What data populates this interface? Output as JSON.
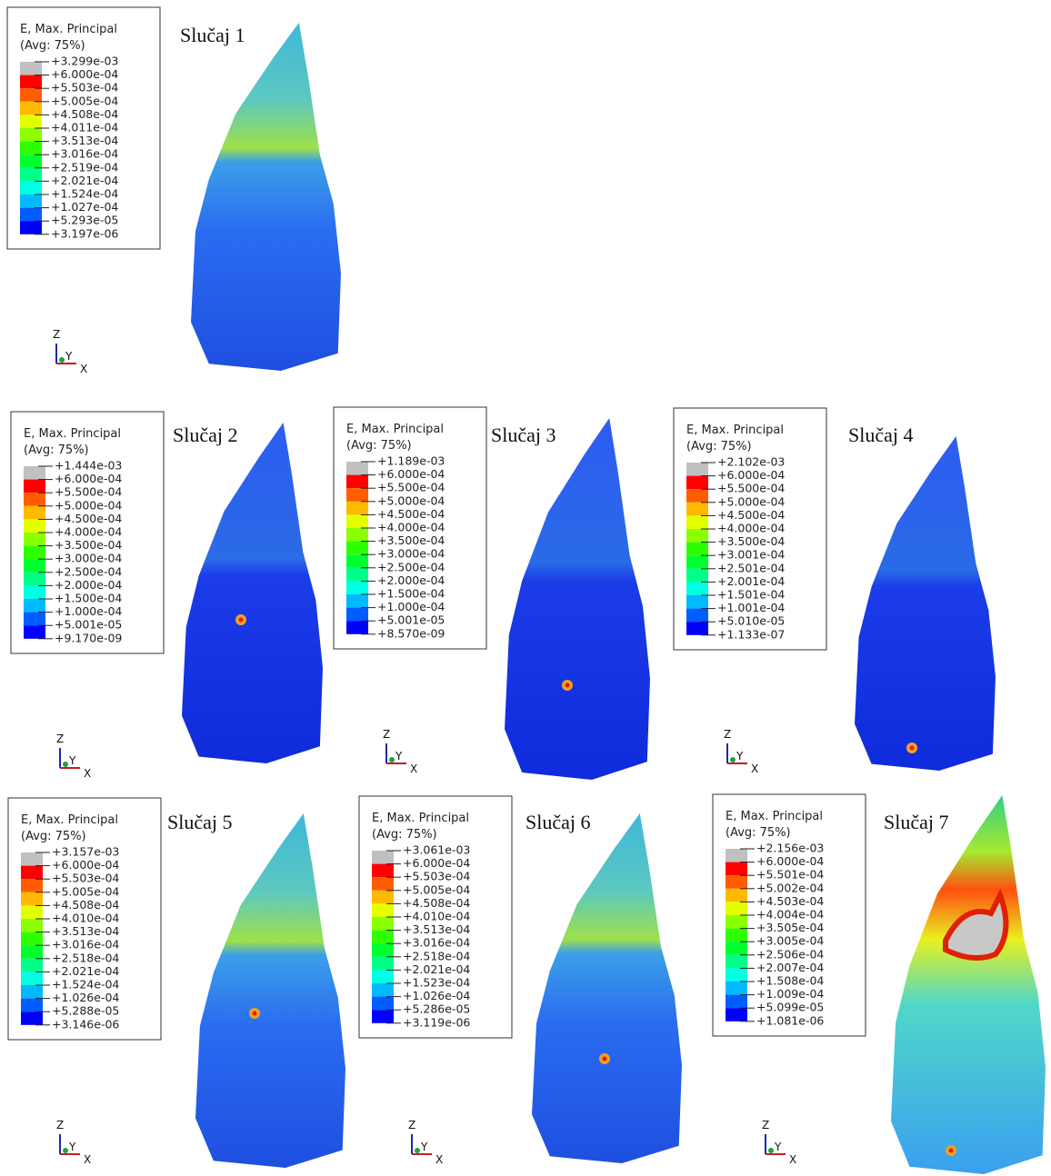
{
  "panels": [
    {
      "title": "Slučaj 1",
      "legend": {
        "title": "E, Max. Principal",
        "subtitle": "(Avg: 75%)",
        "labels": [
          "+3.299e-03",
          "+6.000e-04",
          "+5.503e-04",
          "+5.005e-04",
          "+4.508e-04",
          "+4.011e-04",
          "+3.513e-04",
          "+3.016e-04",
          "+2.519e-04",
          "+2.021e-04",
          "+1.524e-04",
          "+1.027e-04",
          "+5.293e-05",
          "+3.197e-06"
        ]
      },
      "triad": {
        "z": "Z",
        "y": "Y",
        "x": "X"
      }
    },
    {
      "title": "Slučaj 2",
      "legend": {
        "title": "E, Max. Principal",
        "subtitle": "(Avg: 75%)",
        "labels": [
          "+1.444e-03",
          "+6.000e-04",
          "+5.500e-04",
          "+5.000e-04",
          "+4.500e-04",
          "+4.000e-04",
          "+3.500e-04",
          "+3.000e-04",
          "+2.500e-04",
          "+2.000e-04",
          "+1.500e-04",
          "+1.000e-04",
          "+5.001e-05",
          "+9.170e-09"
        ]
      },
      "triad": {
        "z": "Z",
        "y": "Y",
        "x": "X"
      }
    },
    {
      "title": "Slučaj 3",
      "legend": {
        "title": "E, Max. Principal",
        "subtitle": "(Avg: 75%)",
        "labels": [
          "+1.189e-03",
          "+6.000e-04",
          "+5.500e-04",
          "+5.000e-04",
          "+4.500e-04",
          "+4.000e-04",
          "+3.500e-04",
          "+3.000e-04",
          "+2.500e-04",
          "+2.000e-04",
          "+1.500e-04",
          "+1.000e-04",
          "+5.001e-05",
          "+8.570e-09"
        ]
      },
      "triad": {
        "z": "Z",
        "y": "Y",
        "x": "X"
      }
    },
    {
      "title": "Slučaj 4",
      "legend": {
        "title": "E, Max. Principal",
        "subtitle": "(Avg: 75%)",
        "labels": [
          "+2.102e-03",
          "+6.000e-04",
          "+5.500e-04",
          "+5.000e-04",
          "+4.500e-04",
          "+4.000e-04",
          "+3.500e-04",
          "+3.001e-04",
          "+2.501e-04",
          "+2.001e-04",
          "+1.501e-04",
          "+1.001e-04",
          "+5.010e-05",
          "+1.133e-07"
        ]
      },
      "triad": {
        "z": "Z",
        "y": "Y",
        "x": "X"
      }
    },
    {
      "title": "Slučaj 5",
      "legend": {
        "title": "E, Max. Principal",
        "subtitle": "(Avg: 75%)",
        "labels": [
          "+3.157e-03",
          "+6.000e-04",
          "+5.503e-04",
          "+5.005e-04",
          "+4.508e-04",
          "+4.010e-04",
          "+3.513e-04",
          "+3.016e-04",
          "+2.518e-04",
          "+2.021e-04",
          "+1.524e-04",
          "+1.026e-04",
          "+5.288e-05",
          "+3.146e-06"
        ]
      },
      "triad": {
        "z": "Z",
        "y": "Y",
        "x": "X"
      }
    },
    {
      "title": "Slučaj 6",
      "legend": {
        "title": "E, Max. Principal",
        "subtitle": "(Avg: 75%)",
        "labels": [
          "+3.061e-03",
          "+6.000e-04",
          "+5.503e-04",
          "+5.005e-04",
          "+4.508e-04",
          "+4.010e-04",
          "+3.513e-04",
          "+3.016e-04",
          "+2.518e-04",
          "+2.021e-04",
          "+1.523e-04",
          "+1.026e-04",
          "+5.286e-05",
          "+3.119e-06"
        ]
      },
      "triad": {
        "z": "Z",
        "y": "Y",
        "x": "X"
      }
    },
    {
      "title": "Slučaj 7",
      "legend": {
        "title": "E, Max. Principal",
        "subtitle": "(Avg: 75%)",
        "labels": [
          "+2.156e-03",
          "+6.000e-04",
          "+5.501e-04",
          "+5.002e-04",
          "+4.503e-04",
          "+4.004e-04",
          "+3.505e-04",
          "+3.005e-04",
          "+2.506e-04",
          "+2.007e-04",
          "+1.508e-04",
          "+1.009e-04",
          "+5.099e-05",
          "+1.081e-06"
        ]
      },
      "triad": {
        "z": "Z",
        "y": "Y",
        "x": "X"
      }
    }
  ]
}
